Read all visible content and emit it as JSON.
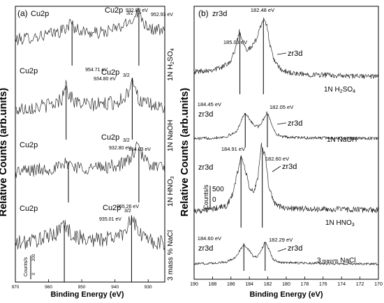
{
  "chart_data": [
    {
      "type": "line",
      "panel_label": "(a)",
      "xlabel": "Binding Energy (eV)",
      "ylabel": "Relative Counts (arb.units)",
      "xlim": [
        970,
        925
      ],
      "x_ticks": [
        970,
        960,
        950,
        940,
        930
      ],
      "x_reversed": true,
      "scale_bar": {
        "label": "Counts/s",
        "value": "200",
        "zero": "0"
      },
      "series": [
        {
          "name": "1N H2SO4",
          "region_label": "Cu2p",
          "peak_label": "Cu2p3/2",
          "peaks": [
            {
              "x": 952.93,
              "label": "952.93 eV"
            },
            {
              "x": 932.8,
              "label": "932.80 eV"
            }
          ],
          "points": [
            [
              970,
              0.46
            ],
            [
              966,
              0.5
            ],
            [
              962,
              0.54
            ],
            [
              960,
              0.56
            ],
            [
              957,
              0.6
            ],
            [
              955,
              0.66
            ],
            [
              953,
              0.78
            ],
            [
              952,
              0.66
            ],
            [
              950,
              0.62
            ],
            [
              946,
              0.58
            ],
            [
              943,
              0.6
            ],
            [
              940,
              0.66
            ],
            [
              937,
              0.72
            ],
            [
              935,
              0.82
            ],
            [
              934,
              0.9
            ],
            [
              933,
              0.98
            ],
            [
              932,
              0.86
            ],
            [
              931,
              0.76
            ],
            [
              929,
              0.66
            ],
            [
              926,
              0.62
            ],
            [
              925,
              0.6
            ]
          ]
        },
        {
          "name": "1N NaOH",
          "region_label": "Cu2p",
          "peak_label": "Cu2p3/2",
          "peaks": [
            {
              "x": 954.71,
              "label": "954.71 eV"
            },
            {
              "x": 934.8,
              "label": "934.80 eV"
            }
          ],
          "points": [
            [
              970,
              0.46
            ],
            [
              966,
              0.5
            ],
            [
              962,
              0.52
            ],
            [
              958,
              0.56
            ],
            [
              956,
              0.64
            ],
            [
              955,
              0.88
            ],
            [
              954,
              0.72
            ],
            [
              952,
              0.58
            ],
            [
              948,
              0.54
            ],
            [
              944,
              0.55
            ],
            [
              940,
              0.58
            ],
            [
              938,
              0.62
            ],
            [
              936,
              0.74
            ],
            [
              935,
              0.98
            ],
            [
              934,
              0.86
            ],
            [
              933,
              0.62
            ],
            [
              931,
              0.56
            ],
            [
              928,
              0.52
            ],
            [
              925,
              0.5
            ]
          ]
        },
        {
          "name": "1N HNO3",
          "region_label": "Cu2p",
          "peak_label": "Cu2p3/2",
          "peaks": [
            {
              "x": 954.03,
              "label": "954.03 eV"
            },
            {
              "x": 932.8,
              "label": "932.80 eV"
            }
          ],
          "points": [
            [
              970,
              0.5
            ],
            [
              966,
              0.52
            ],
            [
              962,
              0.54
            ],
            [
              958,
              0.56
            ],
            [
              956,
              0.58
            ],
            [
              954,
              0.66
            ],
            [
              952,
              0.58
            ],
            [
              948,
              0.56
            ],
            [
              944,
              0.57
            ],
            [
              940,
              0.6
            ],
            [
              937,
              0.64
            ],
            [
              935,
              0.74
            ],
            [
              934,
              0.86
            ],
            [
              933,
              0.9
            ],
            [
              932,
              0.78
            ],
            [
              930,
              0.64
            ],
            [
              927,
              0.58
            ],
            [
              925,
              0.56
            ]
          ]
        },
        {
          "name": "3 mass% NaCl",
          "region_label": "Cu2p",
          "peak_label": "Cu2p3/2",
          "peaks": [
            {
              "x": 955.26,
              "label": "955.26 eV"
            },
            {
              "x": 935.01,
              "label": "935.01 eV"
            }
          ],
          "points": [
            [
              970,
              0.52
            ],
            [
              966,
              0.56
            ],
            [
              962,
              0.6
            ],
            [
              959,
              0.64
            ],
            [
              957,
              0.7
            ],
            [
              956,
              0.82
            ],
            [
              955,
              0.76
            ],
            [
              953,
              0.66
            ],
            [
              950,
              0.6
            ],
            [
              946,
              0.58
            ],
            [
              942,
              0.6
            ],
            [
              938,
              0.66
            ],
            [
              936,
              0.8
            ],
            [
              935,
              0.92
            ],
            [
              934,
              0.78
            ],
            [
              932,
              0.64
            ],
            [
              930,
              0.58
            ],
            [
              927,
              0.54
            ],
            [
              925,
              0.52
            ]
          ]
        }
      ]
    },
    {
      "type": "line",
      "panel_label": "(b)",
      "title": "zr3d",
      "xlabel": "Binding Energy (eV)",
      "ylabel": "Relative Counts (arb.units)",
      "xlim": [
        190,
        170
      ],
      "x_ticks": [
        190,
        188,
        186,
        184,
        182,
        180,
        178,
        176,
        174,
        172,
        170
      ],
      "x_reversed": true,
      "scale_bar": {
        "label": "Counts/s",
        "value": "500",
        "zero": "0"
      },
      "series": [
        {
          "name": "1N H2SO4",
          "region_label": "zr3d",
          "peaks": [
            {
              "x": 185.03,
              "label": "185.03 eV"
            },
            {
              "x": 182.48,
              "label": "182.48 eV"
            }
          ],
          "points": [
            [
              190,
              0.3
            ],
            [
              188,
              0.33
            ],
            [
              187,
              0.36
            ],
            [
              186,
              0.45
            ],
            [
              185.5,
              0.62
            ],
            [
              185.1,
              0.84
            ],
            [
              184.7,
              0.72
            ],
            [
              184.3,
              0.6
            ],
            [
              183.8,
              0.62
            ],
            [
              183.3,
              0.72
            ],
            [
              182.9,
              0.88
            ],
            [
              182.5,
              1.0
            ],
            [
              182.1,
              0.92
            ],
            [
              181.7,
              0.62
            ],
            [
              181.2,
              0.42
            ],
            [
              180.5,
              0.32
            ],
            [
              179,
              0.27
            ],
            [
              176,
              0.26
            ],
            [
              173,
              0.24
            ],
            [
              170,
              0.24
            ]
          ]
        },
        {
          "name": "1N NaOH",
          "region_label": "zr3d",
          "peaks": [
            {
              "x": 184.45,
              "label": "184.45 eV"
            },
            {
              "x": 182.05,
              "label": "182.05 eV"
            }
          ],
          "points": [
            [
              190,
              0.2
            ],
            [
              188,
              0.22
            ],
            [
              186.5,
              0.25
            ],
            [
              185.5,
              0.35
            ],
            [
              185,
              0.55
            ],
            [
              184.5,
              0.82
            ],
            [
              184,
              0.66
            ],
            [
              183.5,
              0.52
            ],
            [
              183,
              0.48
            ],
            [
              182.6,
              0.6
            ],
            [
              182.1,
              0.82
            ],
            [
              181.7,
              0.62
            ],
            [
              181.2,
              0.34
            ],
            [
              180.5,
              0.25
            ],
            [
              178,
              0.22
            ],
            [
              175,
              0.22
            ],
            [
              172,
              0.21
            ],
            [
              170,
              0.21
            ]
          ]
        },
        {
          "name": "1N HNO3",
          "region_label": "zr3d",
          "peaks": [
            {
              "x": 184.91,
              "label": "184.91 eV"
            },
            {
              "x": 182.6,
              "label": "182.60 eV"
            }
          ],
          "points": [
            [
              190,
              0.2
            ],
            [
              188,
              0.22
            ],
            [
              186.5,
              0.26
            ],
            [
              185.8,
              0.4
            ],
            [
              185.3,
              0.66
            ],
            [
              184.9,
              0.86
            ],
            [
              184.5,
              0.72
            ],
            [
              184,
              0.48
            ],
            [
              183.5,
              0.42
            ],
            [
              183.1,
              0.6
            ],
            [
              182.7,
              1.0
            ],
            [
              182.3,
              0.86
            ],
            [
              181.9,
              0.5
            ],
            [
              181.3,
              0.3
            ],
            [
              180.5,
              0.24
            ],
            [
              177,
              0.22
            ],
            [
              174,
              0.22
            ],
            [
              170,
              0.21
            ]
          ]
        },
        {
          "name": "3 mass% NaCl",
          "region_label": "zr3d",
          "peaks": [
            {
              "x": 184.6,
              "label": "184.60 eV"
            },
            {
              "x": 182.29,
              "label": "182.29 eV"
            }
          ],
          "points": [
            [
              190,
              0.2
            ],
            [
              188,
              0.22
            ],
            [
              186.5,
              0.26
            ],
            [
              185.6,
              0.36
            ],
            [
              185.1,
              0.56
            ],
            [
              184.6,
              0.76
            ],
            [
              184.1,
              0.62
            ],
            [
              183.6,
              0.42
            ],
            [
              183.1,
              0.4
            ],
            [
              182.7,
              0.6
            ],
            [
              182.3,
              0.84
            ],
            [
              181.9,
              0.62
            ],
            [
              181.4,
              0.32
            ],
            [
              180.6,
              0.24
            ],
            [
              178,
              0.22
            ],
            [
              175,
              0.21
            ],
            [
              170,
              0.2
            ]
          ]
        }
      ]
    }
  ],
  "labels": {
    "a_panel": "(a)",
    "a_title": "Cu2p",
    "a_region": "Cu2p",
    "a_peak_main": "Cu2p",
    "a_peak_sub": "3/2",
    "a_leg_h2so4_pre": "1N H",
    "a_leg_h2so4_sub1": "2",
    "a_leg_h2so4_mid": "SO",
    "a_leg_h2so4_sub2": "4",
    "a_leg_naoh": "1N NaOH",
    "a_leg_hno3_pre": "1N HNO",
    "a_leg_hno3_sub": "3",
    "a_leg_nacl": "3 mass % NaCl",
    "b_panel": "(b)",
    "b_title": "zr3d",
    "b_region": "zr3d",
    "b_leg_h2so4_pre": "1N H",
    "b_leg_h2so4_sub1": "2",
    "b_leg_h2so4_mid": "SO",
    "b_leg_h2so4_sub2": "4",
    "b_leg_naoh": "1N NaOH",
    "b_leg_hno3_pre": "1N HNO",
    "b_leg_hno3_sub": "3",
    "b_leg_nacl_pre": "3",
    "b_leg_nacl_mid": " mass%",
    "b_leg_nacl_post": " NaCl",
    "ylabel": "Relative Counts (arb.units)",
    "xlabel": "Binding Energy (eV)",
    "a_scale_label": "Counts/s",
    "a_scale_value": "200",
    "a_scale_zero": "0",
    "b_scale_label": "Counts/s",
    "b_scale_value": "500",
    "b_scale_zero": "0"
  }
}
